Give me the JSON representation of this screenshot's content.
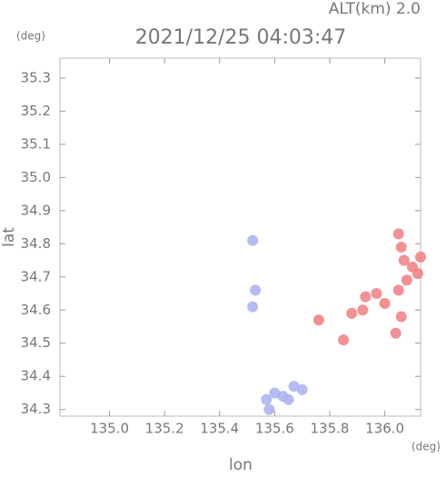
{
  "chart_data": {
    "type": "scatter",
    "altitude_label": "ALT(km) 2.0",
    "title": "2021/12/25 04:03:47",
    "y_unit": "(deg)",
    "x_unit": "(deg)",
    "xlabel": "lon",
    "ylabel": "lat",
    "xlim": [
      134.82,
      136.13
    ],
    "ylim": [
      34.28,
      35.36
    ],
    "xticks": [
      {
        "value": 135,
        "label": "135.0"
      },
      135.2,
      135.4,
      135.6,
      135.8,
      {
        "value": 136,
        "label": "136.0"
      }
    ],
    "yticks": [
      34.3,
      34.4,
      34.5,
      34.6,
      34.7,
      34.8,
      34.9,
      {
        "value": 35,
        "label": "35.0"
      },
      35.1,
      35.2,
      35.3
    ],
    "grid": false,
    "series": [
      {
        "color": "#f07c80",
        "x": [
          136.05,
          136.06,
          136.07,
          136.1,
          136.13,
          136.12,
          136.08,
          136.05,
          135.97,
          136.0,
          135.93,
          136.06,
          136.04,
          135.92,
          135.88,
          135.85,
          135.76
        ],
        "y": [
          34.83,
          34.79,
          34.75,
          34.73,
          34.76,
          34.71,
          34.69,
          34.66,
          34.65,
          34.62,
          34.64,
          34.58,
          34.53,
          34.6,
          34.59,
          34.51,
          34.57
        ]
      },
      {
        "color": "#a8b0f0",
        "x": [
          135.57,
          135.6,
          135.63,
          135.67,
          135.7,
          135.58,
          135.65,
          135.52,
          135.52,
          135.53
        ],
        "y": [
          34.33,
          34.35,
          34.34,
          34.37,
          34.36,
          34.3,
          34.33,
          34.81,
          34.61,
          34.66
        ]
      }
    ]
  }
}
